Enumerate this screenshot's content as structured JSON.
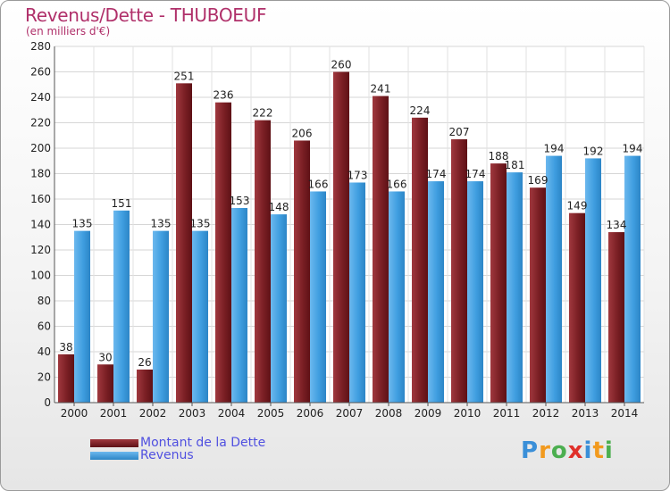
{
  "header": {
    "title": "Revenus/Dette - THUBOEUF",
    "unit": "(en milliers d'€)"
  },
  "chart_data": {
    "type": "bar",
    "categories": [
      "2000",
      "2001",
      "2002",
      "2003",
      "2004",
      "2005",
      "2006",
      "2007",
      "2008",
      "2009",
      "2010",
      "2011",
      "2012",
      "2013",
      "2014"
    ],
    "series": [
      {
        "name": "Montant de la Dette",
        "color": "#7a1f24",
        "values": [
          38,
          30,
          26,
          251,
          236,
          222,
          206,
          260,
          241,
          224,
          207,
          188,
          169,
          149,
          134
        ]
      },
      {
        "name": "Revenus",
        "color": "#3f9ee0",
        "values": [
          135,
          151,
          135,
          135,
          153,
          148,
          166,
          173,
          166,
          174,
          174,
          181,
          194,
          192,
          194
        ]
      }
    ],
    "ylim": [
      0,
      280
    ],
    "yticks": [
      0,
      20,
      40,
      60,
      80,
      100,
      120,
      140,
      160,
      180,
      200,
      220,
      240,
      260,
      280
    ],
    "grid": true,
    "legend": "bottom-left"
  },
  "logo": {
    "letters": [
      "P",
      "r",
      "o",
      "x",
      "i",
      "t",
      "i"
    ],
    "colors": [
      "#3a8fd8",
      "#f29a1e",
      "#4caf50",
      "#e0302a",
      "#3a8fd8",
      "#f29a1e",
      "#4caf50"
    ]
  }
}
